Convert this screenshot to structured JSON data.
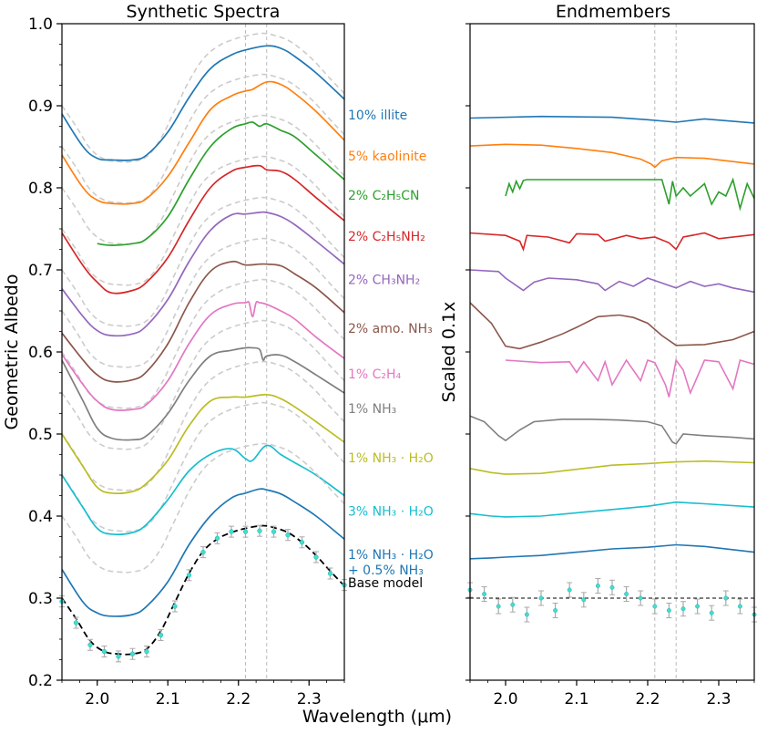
{
  "chart_data": [
    {
      "type": "line",
      "title": "Synthetic Spectra",
      "xlabel": "Wavelength (μm)",
      "ylabel": "Geometric Albedo",
      "xlim": [
        1.95,
        2.35
      ],
      "ylim": [
        0.2,
        1.0
      ],
      "xticks": [
        "2.0",
        "2.1",
        "2.2",
        "2.3"
      ],
      "yticks": [
        "0.2",
        "0.3",
        "0.4",
        "0.5",
        "0.6",
        "0.7",
        "0.8",
        "0.9",
        "1.0"
      ],
      "vlines": [
        2.21,
        2.24
      ],
      "base_model": {
        "name": "Base model",
        "color": "#000000",
        "x": [
          1.95,
          1.97,
          1.99,
          2.01,
          2.03,
          2.05,
          2.07,
          2.09,
          2.11,
          2.13,
          2.15,
          2.17,
          2.19,
          2.21,
          2.23,
          2.24,
          2.25,
          2.27,
          2.29,
          2.31,
          2.33,
          2.35
        ],
        "y": [
          0.3,
          0.275,
          0.248,
          0.235,
          0.232,
          0.232,
          0.238,
          0.26,
          0.295,
          0.33,
          0.357,
          0.372,
          0.38,
          0.385,
          0.388,
          0.388,
          0.386,
          0.38,
          0.368,
          0.352,
          0.333,
          0.315
        ]
      },
      "observed": {
        "x": [
          1.95,
          1.97,
          1.99,
          2.01,
          2.03,
          2.05,
          2.07,
          2.09,
          2.11,
          2.13,
          2.15,
          2.17,
          2.19,
          2.21,
          2.23,
          2.25,
          2.27,
          2.29,
          2.31,
          2.33,
          2.35
        ],
        "y": [
          0.296,
          0.27,
          0.243,
          0.235,
          0.229,
          0.232,
          0.235,
          0.255,
          0.29,
          0.328,
          0.356,
          0.373,
          0.381,
          0.381,
          0.382,
          0.381,
          0.377,
          0.368,
          0.35,
          0.33,
          0.316
        ]
      },
      "series": [
        {
          "label": "10% illite",
          "color": "#1f77b4",
          "offset": 0.6,
          "x": [
            1.95,
            1.98,
            2.0,
            2.02,
            2.05,
            2.07,
            2.1,
            2.13,
            2.16,
            2.19,
            2.21,
            2.24,
            2.26,
            2.28,
            2.31,
            2.35
          ],
          "y": [
            0.29,
            0.25,
            0.236,
            0.234,
            0.234,
            0.24,
            0.268,
            0.31,
            0.345,
            0.362,
            0.368,
            0.373,
            0.37,
            0.36,
            0.34,
            0.308
          ]
        },
        {
          "label": "5% kaolinite",
          "color": "#ff7f0e",
          "offset": 0.55,
          "x": [
            1.95,
            1.98,
            2.0,
            2.02,
            2.05,
            2.07,
            2.1,
            2.13,
            2.16,
            2.19,
            2.21,
            2.22,
            2.24,
            2.26,
            2.28,
            2.31,
            2.35
          ],
          "y": [
            0.29,
            0.25,
            0.235,
            0.231,
            0.231,
            0.237,
            0.264,
            0.305,
            0.345,
            0.362,
            0.368,
            0.37,
            0.379,
            0.376,
            0.365,
            0.343,
            0.308
          ]
        },
        {
          "label": "2% C₂H₅CN",
          "color": "#2ca02c",
          "offset": 0.5,
          "x": [
            2.0,
            2.02,
            2.05,
            2.07,
            2.1,
            2.13,
            2.16,
            2.19,
            2.21,
            2.22,
            2.23,
            2.24,
            2.26,
            2.28,
            2.31,
            2.35
          ],
          "y": [
            0.232,
            0.23,
            0.232,
            0.238,
            0.265,
            0.31,
            0.35,
            0.372,
            0.378,
            0.38,
            0.375,
            0.378,
            0.37,
            0.362,
            0.34,
            0.31
          ]
        },
        {
          "label": "2% C₂H₅NH₂",
          "color": "#d62728",
          "offset": 0.45,
          "x": [
            1.95,
            1.98,
            2.0,
            2.02,
            2.05,
            2.07,
            2.1,
            2.13,
            2.16,
            2.19,
            2.21,
            2.23,
            2.24,
            2.26,
            2.28,
            2.31,
            2.35
          ],
          "y": [
            0.295,
            0.255,
            0.235,
            0.222,
            0.225,
            0.235,
            0.265,
            0.31,
            0.35,
            0.37,
            0.375,
            0.377,
            0.372,
            0.37,
            0.36,
            0.338,
            0.31
          ]
        },
        {
          "label": "2% CH₃NH₂",
          "color": "#9467bd",
          "offset": 0.4,
          "x": [
            1.95,
            1.98,
            2.0,
            2.02,
            2.05,
            2.07,
            2.1,
            2.13,
            2.16,
            2.19,
            2.21,
            2.23,
            2.24,
            2.26,
            2.28,
            2.31,
            2.35
          ],
          "y": [
            0.277,
            0.243,
            0.226,
            0.22,
            0.222,
            0.232,
            0.264,
            0.31,
            0.348,
            0.367,
            0.368,
            0.37,
            0.37,
            0.365,
            0.355,
            0.335,
            0.307
          ]
        },
        {
          "label": "2% amo. NH₃",
          "color": "#8c564b",
          "offset": 0.35,
          "x": [
            1.95,
            1.98,
            2.0,
            2.02,
            2.05,
            2.07,
            2.1,
            2.13,
            2.16,
            2.19,
            2.21,
            2.23,
            2.24,
            2.26,
            2.28,
            2.31,
            2.35
          ],
          "y": [
            0.273,
            0.24,
            0.222,
            0.214,
            0.216,
            0.226,
            0.26,
            0.31,
            0.348,
            0.36,
            0.356,
            0.357,
            0.357,
            0.355,
            0.345,
            0.328,
            0.298
          ]
        },
        {
          "label": "1% C₂H₄",
          "color": "#e377c2",
          "offset": 0.3,
          "x": [
            1.95,
            1.98,
            2.0,
            2.02,
            2.05,
            2.07,
            2.1,
            2.13,
            2.16,
            2.19,
            2.21,
            2.215,
            2.22,
            2.225,
            2.23,
            2.24,
            2.26,
            2.28,
            2.31,
            2.35
          ],
          "y": [
            0.297,
            0.26,
            0.24,
            0.23,
            0.23,
            0.236,
            0.265,
            0.31,
            0.345,
            0.358,
            0.36,
            0.36,
            0.343,
            0.36,
            0.36,
            0.358,
            0.35,
            0.34,
            0.318,
            0.292
          ]
        },
        {
          "label": "1% NH₃",
          "color": "#7f7f7f",
          "offset": 0.25,
          "x": [
            1.95,
            1.98,
            2.0,
            2.02,
            2.05,
            2.07,
            2.1,
            2.13,
            2.16,
            2.19,
            2.21,
            2.22,
            2.23,
            2.235,
            2.24,
            2.26,
            2.28,
            2.31,
            2.35
          ],
          "y": [
            0.34,
            0.29,
            0.257,
            0.245,
            0.243,
            0.248,
            0.275,
            0.315,
            0.345,
            0.352,
            0.355,
            0.355,
            0.353,
            0.34,
            0.345,
            0.346,
            0.338,
            0.322,
            0.3
          ]
        },
        {
          "label": "1% NH₃ · H₂O",
          "color": "#bcbd22",
          "offset": 0.2,
          "x": [
            1.95,
            1.98,
            2.0,
            2.02,
            2.05,
            2.07,
            2.1,
            2.13,
            2.16,
            2.19,
            2.21,
            2.24,
            2.26,
            2.28,
            2.31,
            2.35
          ],
          "y": [
            0.3,
            0.26,
            0.235,
            0.228,
            0.23,
            0.24,
            0.268,
            0.31,
            0.34,
            0.345,
            0.345,
            0.348,
            0.343,
            0.333,
            0.315,
            0.29
          ]
        },
        {
          "label": "3% NH₃ · H₂O",
          "color": "#17becf",
          "offset": 0.15,
          "x": [
            1.95,
            1.98,
            2.0,
            2.02,
            2.05,
            2.07,
            2.1,
            2.13,
            2.16,
            2.19,
            2.21,
            2.22,
            2.24,
            2.26,
            2.28,
            2.31,
            2.35
          ],
          "y": [
            0.3,
            0.26,
            0.235,
            0.228,
            0.23,
            0.24,
            0.27,
            0.305,
            0.325,
            0.332,
            0.32,
            0.318,
            0.336,
            0.325,
            0.315,
            0.3,
            0.275
          ]
        },
        {
          "label": "1% NH₃ · H₂O + 0.5% NH₃",
          "label_lines": [
            "1% NH₃ · H₂O",
            "+ 0.5% NH₃"
          ],
          "color": "#1f77b4",
          "offset": 0.1,
          "x": [
            1.95,
            1.98,
            2.0,
            2.02,
            2.05,
            2.07,
            2.1,
            2.13,
            2.16,
            2.19,
            2.21,
            2.23,
            2.24,
            2.26,
            2.28,
            2.31,
            2.35
          ],
          "y": [
            0.235,
            0.195,
            0.182,
            0.178,
            0.18,
            0.19,
            0.22,
            0.265,
            0.3,
            0.322,
            0.328,
            0.333,
            0.332,
            0.327,
            0.317,
            0.3,
            0.272
          ]
        }
      ]
    },
    {
      "type": "line",
      "title": "Endmembers",
      "xlabel": "Wavelength (μm)",
      "ylabel": "Scaled 0.1x",
      "xlim": [
        1.95,
        2.35
      ],
      "ylim": [
        0.2,
        1.0
      ],
      "xticks": [
        "2.0",
        "2.1",
        "2.2",
        "2.3"
      ],
      "vlines": [
        2.21,
        2.24
      ],
      "zero_line": 0.3,
      "series": [
        {
          "name": "illite",
          "color": "#1f77b4",
          "x": [
            1.95,
            2.05,
            2.15,
            2.2,
            2.24,
            2.28,
            2.35
          ],
          "y": [
            0.885,
            0.887,
            0.886,
            0.883,
            0.88,
            0.884,
            0.879
          ]
        },
        {
          "name": "kaolinite",
          "color": "#ff7f0e",
          "x": [
            1.95,
            2.0,
            2.05,
            2.1,
            2.15,
            2.19,
            2.205,
            2.21,
            2.22,
            2.24,
            2.28,
            2.35
          ],
          "y": [
            0.851,
            0.853,
            0.852,
            0.848,
            0.843,
            0.835,
            0.829,
            0.825,
            0.833,
            0.837,
            0.836,
            0.829
          ]
        },
        {
          "name": "C₂H₅CN",
          "color": "#2ca02c",
          "x": [
            2.0,
            2.005,
            2.01,
            2.015,
            2.02,
            2.025,
            2.03,
            2.2,
            2.22,
            2.23,
            2.235,
            2.24,
            2.25,
            2.26,
            2.28,
            2.29,
            2.3,
            2.31,
            2.32,
            2.33,
            2.34,
            2.35
          ],
          "y": [
            0.79,
            0.805,
            0.795,
            0.808,
            0.799,
            0.809,
            0.81,
            0.81,
            0.81,
            0.78,
            0.808,
            0.79,
            0.8,
            0.79,
            0.805,
            0.78,
            0.795,
            0.79,
            0.81,
            0.775,
            0.805,
            0.787
          ]
        },
        {
          "name": "C₂H₅NH₂",
          "color": "#d62728",
          "x": [
            1.95,
            2.0,
            2.02,
            2.025,
            2.03,
            2.06,
            2.09,
            2.1,
            2.13,
            2.14,
            2.17,
            2.19,
            2.21,
            2.23,
            2.24,
            2.25,
            2.28,
            2.3,
            2.35
          ],
          "y": [
            0.745,
            0.742,
            0.735,
            0.725,
            0.742,
            0.74,
            0.733,
            0.744,
            0.743,
            0.735,
            0.742,
            0.738,
            0.74,
            0.733,
            0.725,
            0.74,
            0.745,
            0.738,
            0.743
          ]
        },
        {
          "name": "CH₃NH₂",
          "color": "#9467bd",
          "x": [
            1.95,
            1.99,
            2.0,
            2.02,
            2.025,
            2.04,
            2.06,
            2.1,
            2.13,
            2.14,
            2.16,
            2.18,
            2.2,
            2.22,
            2.24,
            2.26,
            2.28,
            2.3,
            2.32,
            2.35
          ],
          "y": [
            0.7,
            0.698,
            0.69,
            0.678,
            0.675,
            0.685,
            0.69,
            0.688,
            0.683,
            0.675,
            0.686,
            0.68,
            0.69,
            0.684,
            0.678,
            0.686,
            0.68,
            0.683,
            0.678,
            0.673
          ]
        },
        {
          "name": "amo. NH₃",
          "color": "#8c564b",
          "x": [
            1.95,
            1.98,
            2.0,
            2.02,
            2.05,
            2.08,
            2.1,
            2.13,
            2.16,
            2.18,
            2.2,
            2.22,
            2.24,
            2.28,
            2.32,
            2.35
          ],
          "y": [
            0.66,
            0.635,
            0.607,
            0.604,
            0.612,
            0.622,
            0.63,
            0.643,
            0.645,
            0.642,
            0.635,
            0.62,
            0.608,
            0.609,
            0.615,
            0.625
          ]
        },
        {
          "name": "C₂H₄",
          "color": "#e377c2",
          "x": [
            2.0,
            2.05,
            2.09,
            2.1,
            2.11,
            2.13,
            2.14,
            2.15,
            2.17,
            2.19,
            2.2,
            2.21,
            2.225,
            2.23,
            2.24,
            2.25,
            2.26,
            2.28,
            2.3,
            2.32,
            2.33,
            2.35
          ],
          "y": [
            0.59,
            0.587,
            0.588,
            0.575,
            0.588,
            0.565,
            0.588,
            0.56,
            0.59,
            0.565,
            0.59,
            0.587,
            0.56,
            0.545,
            0.59,
            0.578,
            0.55,
            0.59,
            0.588,
            0.555,
            0.59,
            0.585
          ]
        },
        {
          "name": "NH₃",
          "color": "#7f7f7f",
          "x": [
            1.95,
            1.97,
            1.99,
            2.0,
            2.02,
            2.04,
            2.08,
            2.12,
            2.16,
            2.2,
            2.22,
            2.235,
            2.24,
            2.25,
            2.28,
            2.32,
            2.35
          ],
          "y": [
            0.522,
            0.515,
            0.498,
            0.492,
            0.505,
            0.515,
            0.518,
            0.518,
            0.517,
            0.515,
            0.51,
            0.49,
            0.488,
            0.5,
            0.498,
            0.496,
            0.494
          ]
        },
        {
          "name": "NH₃ · H₂O (1%)",
          "color": "#bcbd22",
          "x": [
            1.95,
            1.98,
            2.0,
            2.05,
            2.1,
            2.15,
            2.2,
            2.24,
            2.28,
            2.35
          ],
          "y": [
            0.458,
            0.453,
            0.451,
            0.452,
            0.457,
            0.462,
            0.464,
            0.466,
            0.467,
            0.465
          ]
        },
        {
          "name": "NH₃ · H₂O (3%)",
          "color": "#17becf",
          "x": [
            1.95,
            1.98,
            2.0,
            2.05,
            2.1,
            2.15,
            2.2,
            2.24,
            2.28,
            2.35
          ],
          "y": [
            0.403,
            0.4,
            0.399,
            0.4,
            0.404,
            0.408,
            0.412,
            0.417,
            0.415,
            0.411
          ]
        },
        {
          "name": "NH₃ · H₂O + 0.5% NH₃",
          "color": "#1f77b4",
          "x": [
            1.95,
            1.98,
            2.0,
            2.05,
            2.1,
            2.15,
            2.2,
            2.24,
            2.28,
            2.35
          ],
          "y": [
            0.348,
            0.349,
            0.35,
            0.352,
            0.356,
            0.36,
            0.362,
            0.365,
            0.363,
            0.356
          ]
        }
      ],
      "residuals": {
        "x": [
          1.95,
          1.97,
          1.99,
          2.01,
          2.03,
          2.05,
          2.07,
          2.09,
          2.11,
          2.13,
          2.15,
          2.17,
          2.19,
          2.21,
          2.23,
          2.25,
          2.27,
          2.29,
          2.31,
          2.33,
          2.35
        ],
        "y": [
          0.31,
          0.305,
          0.29,
          0.292,
          0.28,
          0.3,
          0.285,
          0.31,
          0.298,
          0.315,
          0.313,
          0.305,
          0.3,
          0.29,
          0.285,
          0.287,
          0.29,
          0.282,
          0.3,
          0.29,
          0.28
        ]
      }
    }
  ],
  "extra_labels": {
    "base_model": "Base model"
  }
}
